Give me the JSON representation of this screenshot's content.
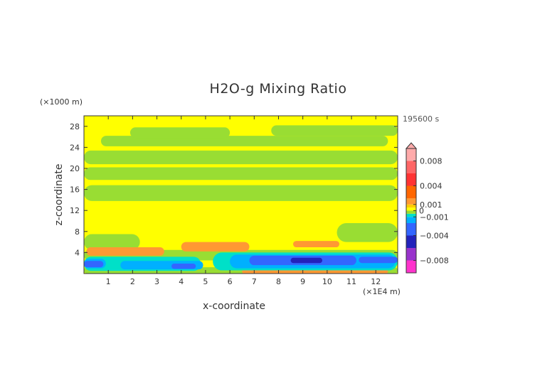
{
  "title": "H2O-g Mixing Ratio",
  "time_label": "195600 s",
  "chart_data": {
    "type": "heatmap",
    "title": "H2O-g Mixing Ratio",
    "xlabel": "x-coordinate",
    "ylabel": "z-coordinate",
    "x_unit": "(×1E4 m)",
    "y_unit": "(×1000 m)",
    "xlim": [
      0,
      12.9
    ],
    "ylim": [
      0,
      30
    ],
    "x_ticks": [
      1,
      2,
      3,
      4,
      5,
      6,
      7,
      8,
      9,
      10,
      11,
      12
    ],
    "y_ticks": [
      4,
      8,
      12,
      16,
      20,
      24,
      28
    ],
    "colorbar": {
      "range": [
        -0.01,
        0.01
      ],
      "tick_values": [
        0.008,
        0.004,
        0.001,
        0,
        -0.001,
        -0.004,
        -0.008
      ],
      "tick_labels": [
        "0.008",
        "0.004",
        "0.001",
        "0",
        "−0.001",
        "−0.004",
        "−0.008"
      ],
      "levels": [
        {
          "from": -0.01,
          "to": -0.008,
          "color": "#ff33cc"
        },
        {
          "from": -0.008,
          "to": -0.006,
          "color": "#9933cc"
        },
        {
          "from": -0.006,
          "to": -0.004,
          "color": "#2222bb"
        },
        {
          "from": -0.004,
          "to": -0.002,
          "color": "#3366ff"
        },
        {
          "from": -0.002,
          "to": -0.001,
          "color": "#00b0ff"
        },
        {
          "from": -0.001,
          "to": -0.0005,
          "color": "#00e0c8"
        },
        {
          "from": -0.0005,
          "to": 0,
          "color": "#99dd33"
        },
        {
          "from": 0,
          "to": 0.0005,
          "color": "#ffff00"
        },
        {
          "from": 0.0005,
          "to": 0.001,
          "color": "#ffcc00"
        },
        {
          "from": 0.001,
          "to": 0.002,
          "color": "#ff9933"
        },
        {
          "from": 0.002,
          "to": 0.004,
          "color": "#ff6600"
        },
        {
          "from": 0.004,
          "to": 0.006,
          "color": "#ff3333"
        },
        {
          "from": 0.006,
          "to": 0.008,
          "color": "#ff6666"
        },
        {
          "from": 0.008,
          "to": 0.01,
          "color": "#ffaaaa"
        }
      ]
    },
    "regions": [
      {
        "value": 0.0002,
        "x": [
          0,
          12.9
        ],
        "y": [
          0,
          30
        ]
      },
      {
        "value": -0.0002,
        "x": [
          0,
          12.9
        ],
        "y": [
          2.5,
          4.5
        ]
      },
      {
        "value": -0.0002,
        "x": [
          0,
          2.3
        ],
        "y": [
          4.5,
          7.5
        ]
      },
      {
        "value": -0.0002,
        "x": [
          0,
          12.9
        ],
        "y": [
          13.8,
          16.8
        ]
      },
      {
        "value": -0.0002,
        "x": [
          0,
          12.9
        ],
        "y": [
          17.8,
          20.2
        ]
      },
      {
        "value": -0.0002,
        "x": [
          0,
          12.9
        ],
        "y": [
          20.8,
          23.4
        ]
      },
      {
        "value": -0.0002,
        "x": [
          0.7,
          12.5
        ],
        "y": [
          24.2,
          26.2
        ]
      },
      {
        "value": -0.0002,
        "x": [
          1.9,
          6.0
        ],
        "y": [
          25.8,
          27.8
        ]
      },
      {
        "value": -0.0002,
        "x": [
          7.7,
          12.9
        ],
        "y": [
          26.2,
          28.2
        ]
      },
      {
        "value": -0.0002,
        "x": [
          10.4,
          12.9
        ],
        "y": [
          6.0,
          9.6
        ]
      },
      {
        "value": -0.0002,
        "x": [
          0,
          12.9
        ],
        "y": [
          0,
          1.2
        ]
      },
      {
        "value": 0.0015,
        "x": [
          0.1,
          3.3
        ],
        "y": [
          3.4,
          5.0
        ]
      },
      {
        "value": 0.0015,
        "x": [
          4.0,
          6.8
        ],
        "y": [
          4.2,
          6.0
        ]
      },
      {
        "value": 0.0015,
        "x": [
          8.6,
          10.5
        ],
        "y": [
          5.0,
          6.2
        ]
      },
      {
        "value": 0.0015,
        "x": [
          10.2,
          12.9
        ],
        "y": [
          2.2,
          3.2
        ]
      },
      {
        "value": 0.0015,
        "x": [
          6.5,
          12.5
        ],
        "y": [
          0,
          0.8
        ]
      },
      {
        "value": -0.0008,
        "x": [
          0,
          4.8
        ],
        "y": [
          0.5,
          3.2
        ]
      },
      {
        "value": -0.0008,
        "x": [
          5.3,
          12.9
        ],
        "y": [
          0.6,
          4.0
        ]
      },
      {
        "value": -0.0015,
        "x": [
          0,
          0.9
        ],
        "y": [
          1.0,
          2.8
        ]
      },
      {
        "value": -0.0015,
        "x": [
          1.5,
          4.9
        ],
        "y": [
          0.8,
          2.4
        ]
      },
      {
        "value": -0.0015,
        "x": [
          6.0,
          12.8
        ],
        "y": [
          1.0,
          3.6
        ]
      },
      {
        "value": -0.003,
        "x": [
          0,
          0.8
        ],
        "y": [
          1.2,
          2.4
        ]
      },
      {
        "value": -0.003,
        "x": [
          3.6,
          4.6
        ],
        "y": [
          0.9,
          1.9
        ]
      },
      {
        "value": -0.003,
        "x": [
          6.8,
          11.2
        ],
        "y": [
          1.6,
          3.4
        ]
      },
      {
        "value": -0.005,
        "x": [
          8.5,
          9.8
        ],
        "y": [
          2.0,
          3.0
        ]
      },
      {
        "value": -0.003,
        "x": [
          11.3,
          12.9
        ],
        "y": [
          2.0,
          3.2
        ]
      }
    ]
  }
}
